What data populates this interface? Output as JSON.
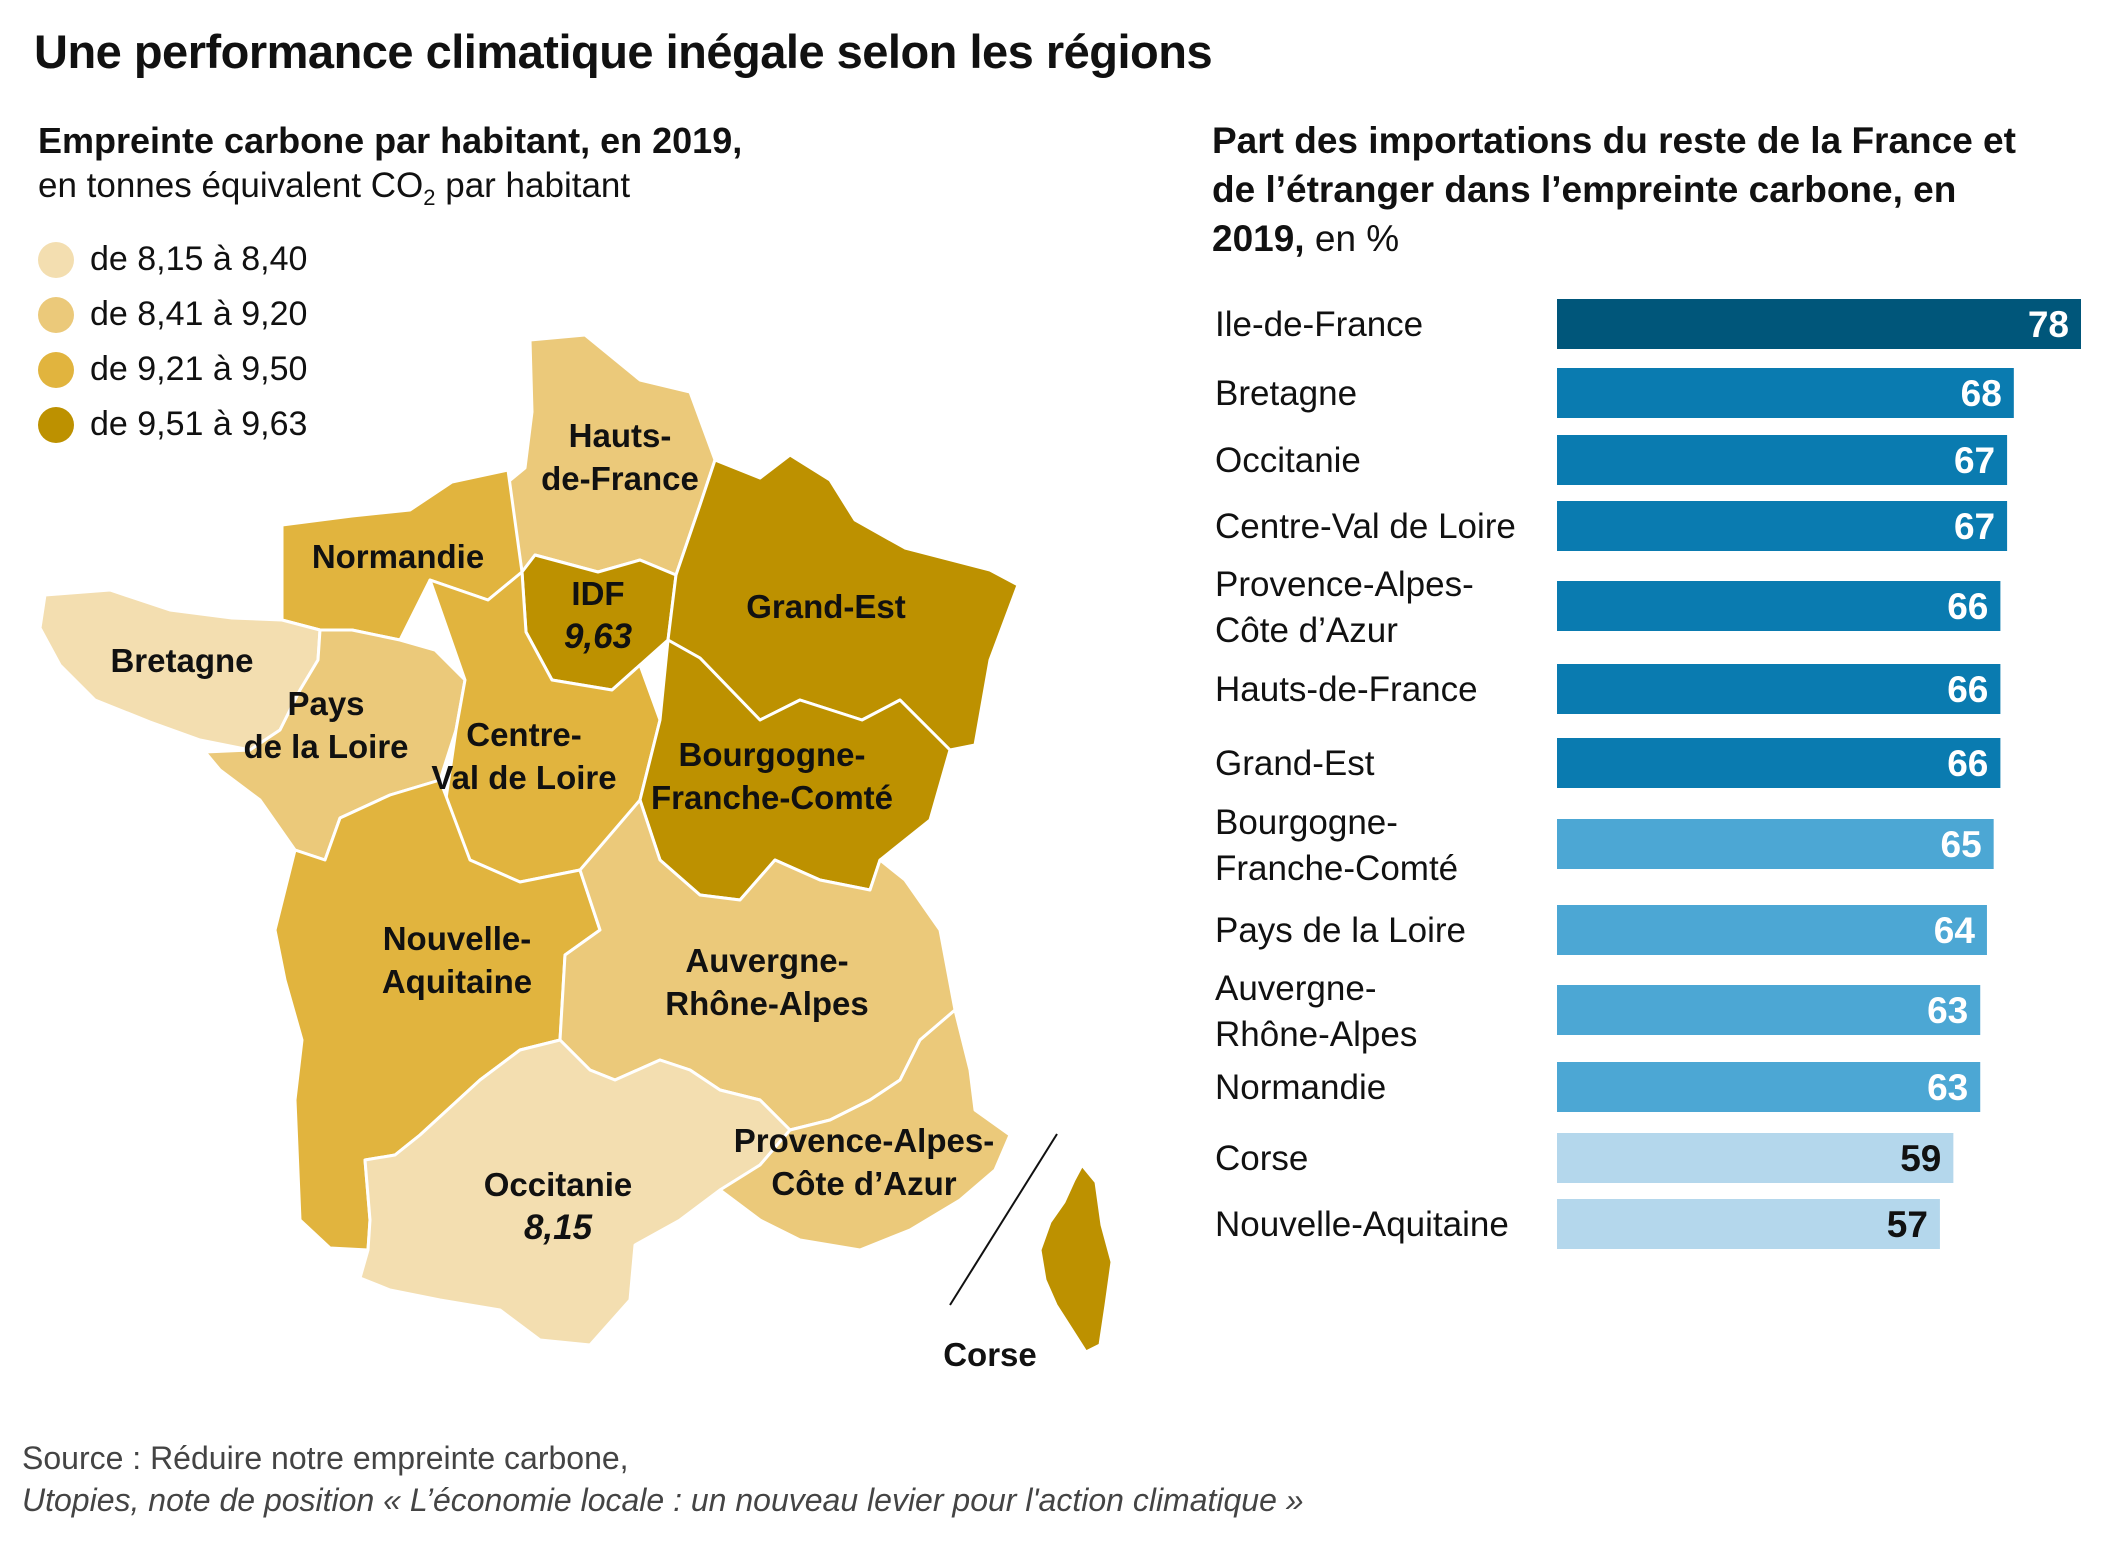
{
  "title": "Une performance climatique inégale selon les régions",
  "map": {
    "subtitle": "Empreinte carbone par habitant, en 2019,",
    "unit_prefix": "en tonnes équivalent CO",
    "unit_sub": "2",
    "unit_suffix": " par habitant",
    "legend": [
      {
        "label": "de 8,15 à 8,40",
        "color": "#f3deb0"
      },
      {
        "label": "de 8,41 à 9,20",
        "color": "#ebc97a"
      },
      {
        "label": "de 9,21 à 9,50",
        "color": "#e1b43e"
      },
      {
        "label": "de 9,51 à 9,63",
        "color": "#bd9100"
      }
    ],
    "regions": [
      {
        "id": "hauts-de-france",
        "lines": [
          "Hauts-",
          "de-France"
        ],
        "class": 1
      },
      {
        "id": "normandie",
        "lines": [
          "Normandie"
        ],
        "class": 2
      },
      {
        "id": "idf",
        "lines": [
          "IDF"
        ],
        "value": "9,63",
        "class": 3
      },
      {
        "id": "grand-est",
        "lines": [
          "Grand-Est"
        ],
        "class": 3
      },
      {
        "id": "bretagne",
        "lines": [
          "Bretagne"
        ],
        "class": 0
      },
      {
        "id": "pays-de-la-loire",
        "lines": [
          "Pays",
          "de la Loire"
        ],
        "class": 1
      },
      {
        "id": "centre-val-de-loire",
        "lines": [
          "Centre-",
          "Val de Loire"
        ],
        "class": 2
      },
      {
        "id": "bourgogne-franche-comte",
        "lines": [
          "Bourgogne-",
          "Franche-Comté"
        ],
        "class": 3
      },
      {
        "id": "nouvelle-aquitaine",
        "lines": [
          "Nouvelle-",
          "Aquitaine"
        ],
        "class": 2
      },
      {
        "id": "auvergne-rhone-alpes",
        "lines": [
          "Auvergne-",
          "Rhône-Alpes"
        ],
        "class": 1
      },
      {
        "id": "occitanie",
        "lines": [
          "Occitanie"
        ],
        "value": "8,15",
        "class": 0
      },
      {
        "id": "paca",
        "lines": [
          "Provence-Alpes-",
          "Côte d’Azur"
        ],
        "class": 1
      },
      {
        "id": "corse",
        "lines": [
          "Corse"
        ],
        "class": 3
      }
    ]
  },
  "chart_data": {
    "type": "bar",
    "title_bold": "Part des importations du reste de la France et de l’étranger dans l’empreinte carbone, en 2019,",
    "title_unit": " en %",
    "categories": [
      [
        "Ile-de-France"
      ],
      [
        "Bretagne"
      ],
      [
        "Occitanie"
      ],
      [
        "Centre-Val de Loire"
      ],
      [
        "Provence-Alpes-",
        "Côte d’Azur"
      ],
      [
        "Hauts-de-France"
      ],
      [
        "Grand-Est"
      ],
      [
        "Bourgogne-",
        "Franche-Comté"
      ],
      [
        "Pays de la Loire"
      ],
      [
        "Auvergne-",
        "Rhône-Alpes"
      ],
      [
        "Normandie"
      ],
      [
        "Corse"
      ],
      [
        "Nouvelle-Aquitaine"
      ]
    ],
    "values": [
      78,
      68,
      67,
      67,
      66,
      66,
      66,
      65,
      64,
      63,
      63,
      59,
      57
    ],
    "colors": [
      "#00567a",
      "#0a7bb0",
      "#0a7bb0",
      "#0a7bb0",
      "#0a7bb0",
      "#0a7bb0",
      "#0a7bb0",
      "#4ca7d4",
      "#4ca7d4",
      "#4ca7d4",
      "#4ca7d4",
      "#b4d7ec",
      "#b4d7ec"
    ],
    "value_text_colors": [
      "#ffffff",
      "#ffffff",
      "#ffffff",
      "#ffffff",
      "#ffffff",
      "#ffffff",
      "#ffffff",
      "#ffffff",
      "#ffffff",
      "#ffffff",
      "#ffffff",
      "#111111",
      "#111111"
    ]
  },
  "source": {
    "line1": "Source  : Réduire notre empreinte carbone,",
    "line2": "Utopies, note de position « L’économie locale : un nouveau levier pour l'action climatique »"
  }
}
